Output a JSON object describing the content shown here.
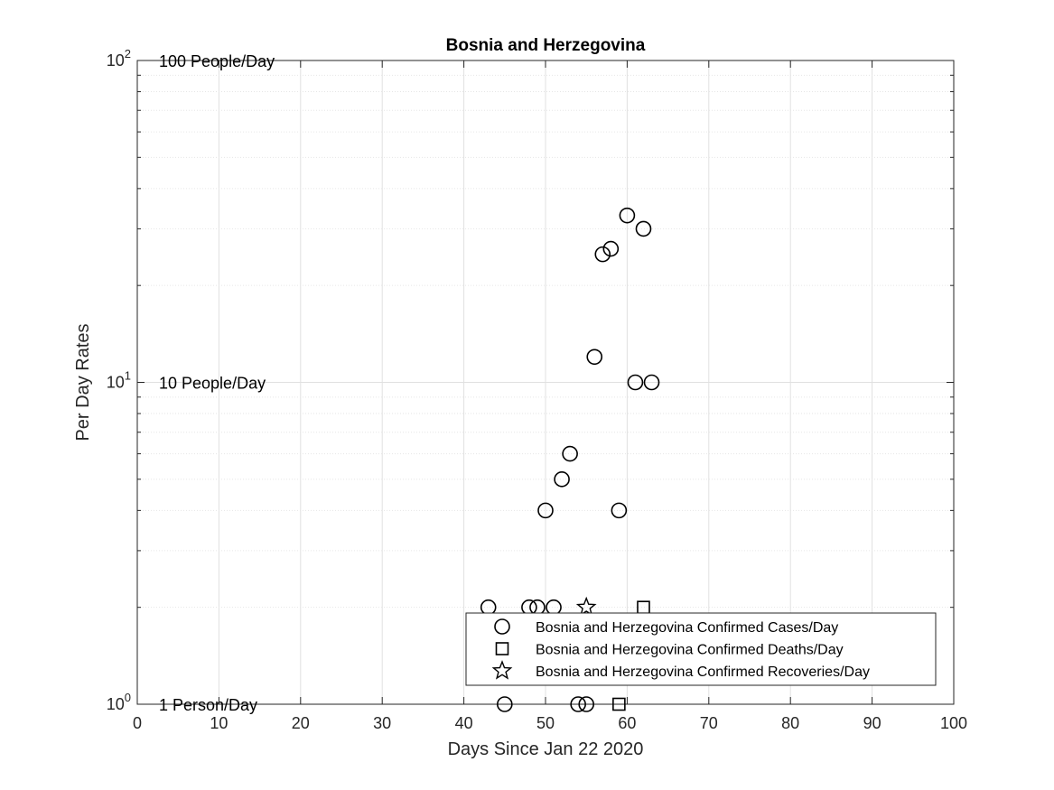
{
  "chart_data": {
    "type": "scatter",
    "title": "Bosnia and Herzegovina",
    "xlabel": "Days Since Jan 22 2020",
    "ylabel": "Per Day Rates",
    "xlim": [
      0,
      100
    ],
    "ylim": [
      1,
      100
    ],
    "yscale": "log",
    "grid": true,
    "x_ticks": [
      0,
      10,
      20,
      30,
      40,
      50,
      60,
      70,
      80,
      90,
      100
    ],
    "y_ticks": [
      {
        "value": 1,
        "base": "10",
        "exp": "0"
      },
      {
        "value": 10,
        "base": "10",
        "exp": "1"
      },
      {
        "value": 100,
        "base": "10",
        "exp": "2"
      }
    ],
    "reference_labels": [
      {
        "value": 100,
        "text": "100 People/Day"
      },
      {
        "value": 10,
        "text": "10 People/Day"
      },
      {
        "value": 1,
        "text": "1 Person/Day"
      }
    ],
    "legend_position": "bottom-right",
    "series": [
      {
        "name": "Bosnia and Herzegovina Confirmed Cases/Day",
        "marker": "circle",
        "points": [
          {
            "x": 43,
            "y": 2
          },
          {
            "x": 45,
            "y": 1
          },
          {
            "x": 48,
            "y": 2
          },
          {
            "x": 49,
            "y": 2
          },
          {
            "x": 50,
            "y": 4
          },
          {
            "x": 51,
            "y": 2
          },
          {
            "x": 52,
            "y": 5
          },
          {
            "x": 53,
            "y": 6
          },
          {
            "x": 54,
            "y": 1
          },
          {
            "x": 55,
            "y": 1
          },
          {
            "x": 56,
            "y": 12
          },
          {
            "x": 57,
            "y": 25
          },
          {
            "x": 58,
            "y": 26
          },
          {
            "x": 59,
            "y": 4
          },
          {
            "x": 60,
            "y": 33
          },
          {
            "x": 61,
            "y": 10
          },
          {
            "x": 62,
            "y": 30
          },
          {
            "x": 63,
            "y": 10
          }
        ]
      },
      {
        "name": "Bosnia and Herzegovina Confirmed Deaths/Day",
        "marker": "square",
        "points": [
          {
            "x": 59,
            "y": 1
          },
          {
            "x": 62,
            "y": 2
          }
        ]
      },
      {
        "name": "Bosnia and Herzegovina Confirmed Recoveries/Day",
        "marker": "star",
        "points": [
          {
            "x": 55,
            "y": 2
          }
        ]
      }
    ]
  }
}
